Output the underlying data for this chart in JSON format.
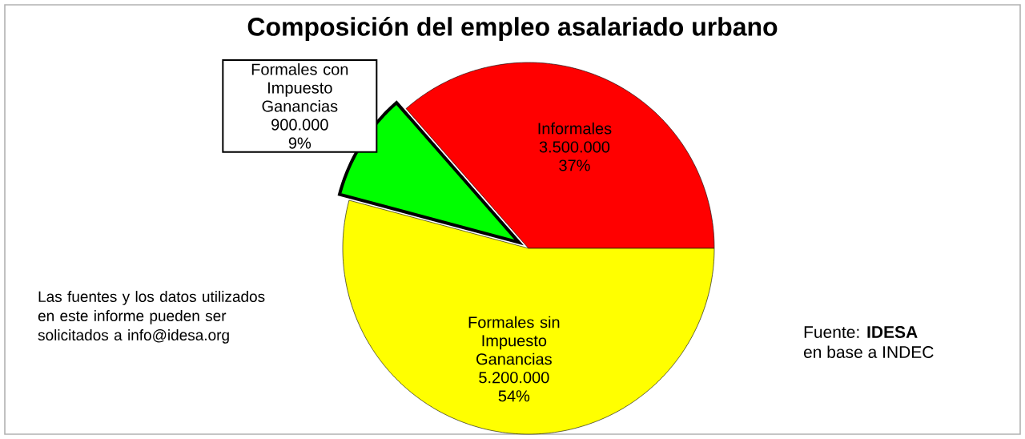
{
  "chart_data": {
    "type": "pie",
    "title": "Composición del empleo asalariado urbano",
    "categories": [
      "Informales",
      "Formales con Impuesto Ganancias",
      "Formales sin Impuesto Ganancias"
    ],
    "values": [
      3500000,
      900000,
      5200000
    ],
    "value_labels": [
      "3.500.000",
      "900.000",
      "5.200.000"
    ],
    "colors": [
      "#ff0000",
      "#00ff00",
      "#ffff00"
    ],
    "legend": false,
    "annotations": [
      "37%",
      "9%",
      "54%",
      "Las fuentes y los datos utilizados en este informe pueden ser solicitados a info@idesa.org",
      "Fuente: **IDESA**",
      "en base a INDEC"
    ]
  }
}
